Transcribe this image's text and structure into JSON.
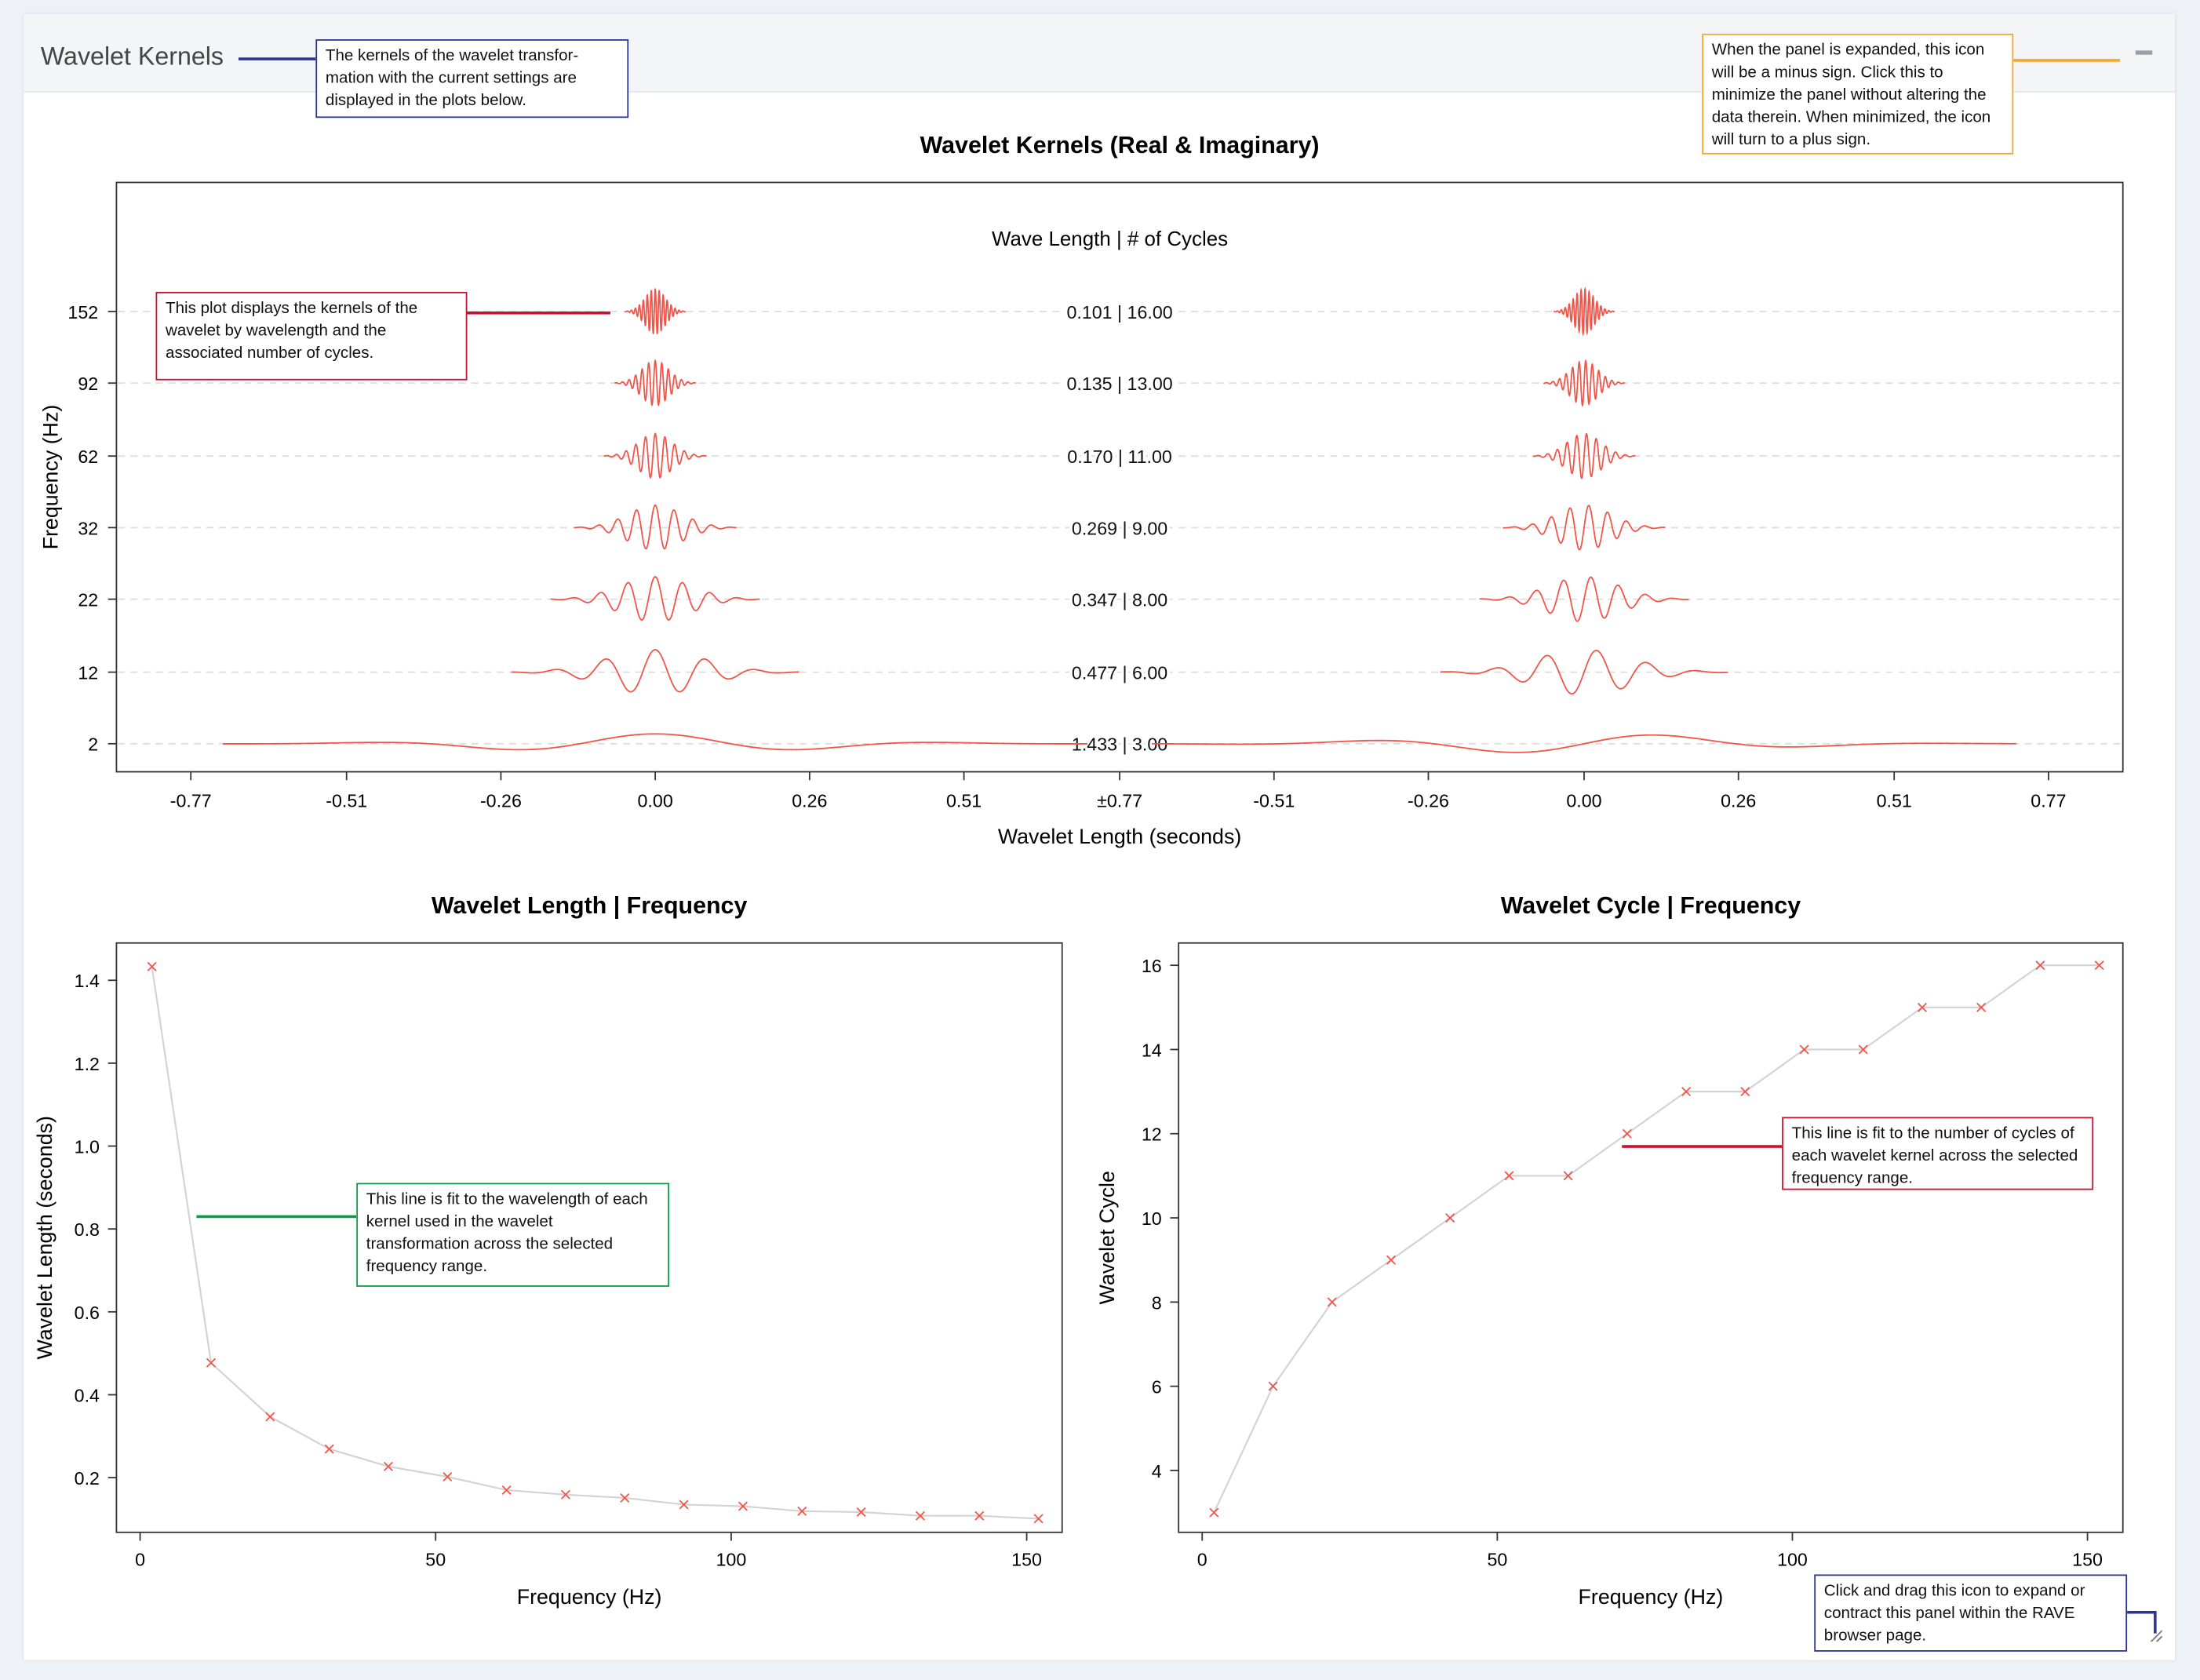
{
  "panel": {
    "title": "Wavelet Kernels",
    "collapse_icon": "minus-icon",
    "resize_icon": "resize-handle-icon"
  },
  "annotations": {
    "header": "The kernels of the wavelet transfor-mation with the current settings are displayed in the plots below.",
    "collapse": "When the panel is expanded, this icon will be a minus sign. Click this to minimize the panel without altering the data therein. When minimized, the icon will turn to a plus sign.",
    "kernels": "This plot displays the kernels of the wavelet by wavelength and the associated number of cycles.",
    "length": "This line is fit to the wavelength of each kernel used in the wavelet transformation across the selected frequency range.",
    "cycles": "This line is fit to the number of cycles of each wavelet kernel across the selected frequency range.",
    "resize": "Click and drag this icon to expand or contract this panel within the RAVE browser page."
  },
  "colors": {
    "kernel": "#f0554a",
    "fit_line": "#d3d3d3",
    "marker": "#f0554a",
    "note_blue": "#2b3595",
    "note_orange": "#f5a623",
    "note_red": "#c8102e",
    "note_green": "#0d9b47"
  },
  "chart_data": [
    {
      "type": "line",
      "title": "Wavelet Kernels (Real & Imaginary)",
      "subtitle": "Wave Length | # of Cycles",
      "xlabel": "Wavelet Length (seconds)",
      "ylabel": "Frequency (Hz)",
      "xtick_labels": [
        "-0.77",
        "-0.51",
        "-0.26",
        "0.00",
        "0.26",
        "0.51",
        "±0.77",
        "-0.51",
        "-0.26",
        "0.00",
        "0.26",
        "0.51",
        "0.77"
      ],
      "frequencies": [
        152,
        92,
        62,
        32,
        22,
        12,
        2
      ],
      "wavelengths": [
        0.101,
        0.135,
        0.17,
        0.269,
        0.347,
        0.477,
        1.433
      ],
      "cycles": [
        16,
        13,
        11,
        9,
        8,
        6,
        3
      ],
      "row_labels": [
        "0.101 | 16.00",
        "0.135 | 13.00",
        "0.170 | 11.00",
        "0.269 | 9.00",
        "0.347 | 8.00",
        "0.477 | 6.00",
        "1.433 | 3.00"
      ],
      "grid": true
    },
    {
      "type": "line",
      "title": "Wavelet Length | Frequency",
      "xlabel": "Frequency (Hz)",
      "ylabel": "Wavelet Length (seconds)",
      "x": [
        2,
        12,
        22,
        32,
        42,
        52,
        62,
        72,
        82,
        92,
        102,
        112,
        122,
        132,
        142,
        152
      ],
      "y": [
        1.433,
        0.477,
        0.347,
        0.269,
        0.227,
        0.202,
        0.17,
        0.159,
        0.151,
        0.135,
        0.131,
        0.119,
        0.117,
        0.108,
        0.108,
        0.101
      ],
      "xticks": [
        0,
        50,
        100,
        150
      ],
      "yticks": [
        0.2,
        0.4,
        0.6,
        0.8,
        1.0,
        1.2,
        1.4
      ],
      "ytick_labels": [
        "0.2",
        "0.4",
        "0.6",
        "0.8",
        "1.0",
        "1.2",
        "1.4"
      ],
      "xlim": [
        -4,
        156
      ],
      "ylim": [
        0.068,
        1.49
      ]
    },
    {
      "type": "line",
      "title": "Wavelet Cycle | Frequency",
      "xlabel": "Frequency (Hz)",
      "ylabel": "Wavelet Cycle",
      "x": [
        2,
        12,
        22,
        32,
        42,
        52,
        62,
        72,
        82,
        92,
        102,
        112,
        122,
        132,
        142,
        152
      ],
      "y": [
        3,
        6,
        8,
        9,
        10,
        11,
        11,
        12,
        13,
        13,
        14,
        14,
        15,
        15,
        16,
        16
      ],
      "xticks": [
        0,
        50,
        100,
        150
      ],
      "yticks": [
        4,
        6,
        8,
        10,
        12,
        14,
        16
      ],
      "xlim": [
        -4,
        156
      ],
      "ylim": [
        2.53,
        16.53
      ]
    }
  ]
}
